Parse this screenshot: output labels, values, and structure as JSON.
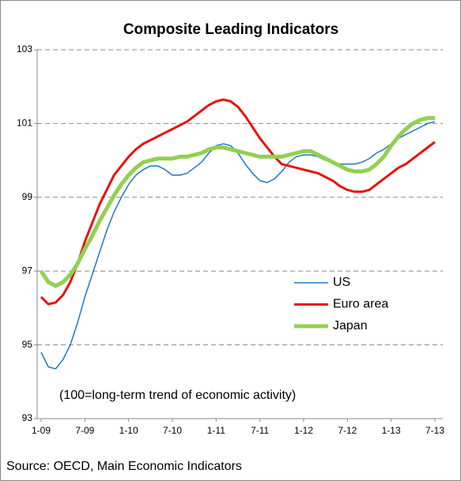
{
  "chart_data": {
    "type": "line",
    "title": "Composite Leading Indicators",
    "annotation": "(100=long-term trend of economic activity)",
    "source": "Source: OECD, Main Economic Indicators",
    "categories": [
      "1-09",
      null,
      null,
      null,
      null,
      null,
      "7-09",
      null,
      null,
      null,
      null,
      null,
      "1-10",
      null,
      null,
      null,
      null,
      null,
      "7-10",
      null,
      null,
      null,
      null,
      null,
      "1-11",
      null,
      null,
      null,
      null,
      null,
      "7-11",
      null,
      null,
      null,
      null,
      null,
      "1-12",
      null,
      null,
      null,
      null,
      null,
      "7-12",
      null,
      null,
      null,
      null,
      null,
      "1-13",
      null,
      null,
      null,
      null,
      null,
      "7-13"
    ],
    "series": [
      {
        "name": "US",
        "color": "#1f77c4",
        "width": 1.5,
        "values": [
          94.8,
          94.4,
          94.35,
          94.6,
          95.0,
          95.6,
          96.3,
          96.9,
          97.5,
          98.1,
          98.6,
          99.0,
          99.35,
          99.6,
          99.75,
          99.85,
          99.85,
          99.75,
          99.6,
          99.6,
          99.65,
          99.8,
          99.95,
          100.2,
          100.4,
          100.45,
          100.4,
          100.2,
          99.9,
          99.65,
          99.45,
          99.4,
          99.5,
          99.7,
          99.95,
          100.1,
          100.15,
          100.15,
          100.1,
          100.0,
          99.95,
          99.9,
          99.9,
          99.9,
          99.95,
          100.05,
          100.2,
          100.3,
          100.45,
          100.6,
          100.7,
          100.8,
          100.9,
          101.0,
          101.05
        ]
      },
      {
        "name": "Euro area",
        "color": "#e8120f",
        "width": 3,
        "values": [
          96.3,
          96.1,
          96.15,
          96.35,
          96.7,
          97.2,
          97.8,
          98.3,
          98.8,
          99.2,
          99.6,
          99.85,
          100.1,
          100.3,
          100.45,
          100.55,
          100.65,
          100.75,
          100.85,
          100.95,
          101.05,
          101.2,
          101.35,
          101.5,
          101.6,
          101.65,
          101.6,
          101.45,
          101.2,
          100.9,
          100.6,
          100.35,
          100.1,
          99.9,
          99.85,
          99.8,
          99.75,
          99.7,
          99.65,
          99.55,
          99.45,
          99.3,
          99.2,
          99.15,
          99.15,
          99.2,
          99.35,
          99.5,
          99.65,
          99.8,
          99.9,
          100.05,
          100.2,
          100.35,
          100.5
        ]
      },
      {
        "name": "Japan",
        "color": "#92d050",
        "width": 5,
        "values": [
          97.0,
          96.7,
          96.6,
          96.7,
          96.9,
          97.2,
          97.6,
          97.95,
          98.35,
          98.7,
          99.05,
          99.35,
          99.6,
          99.8,
          99.95,
          100.0,
          100.05,
          100.05,
          100.05,
          100.1,
          100.1,
          100.15,
          100.2,
          100.3,
          100.35,
          100.35,
          100.3,
          100.25,
          100.2,
          100.15,
          100.1,
          100.1,
          100.1,
          100.1,
          100.15,
          100.2,
          100.25,
          100.25,
          100.15,
          100.05,
          99.95,
          99.85,
          99.75,
          99.7,
          99.7,
          99.75,
          99.9,
          100.1,
          100.4,
          100.65,
          100.85,
          101.0,
          101.1,
          101.15,
          101.15
        ]
      }
    ],
    "ylim": [
      93,
      103
    ],
    "yticks": [
      93,
      95,
      97,
      99,
      101,
      103
    ],
    "grid": true
  }
}
